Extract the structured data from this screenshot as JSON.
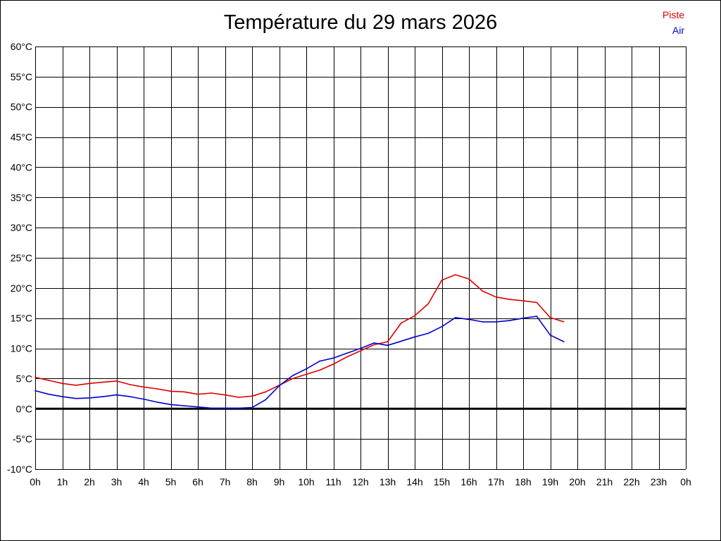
{
  "chart_data": {
    "type": "line",
    "title": "Température du 29 mars 2026",
    "xlabel": "",
    "ylabel": "",
    "x_ticks": [
      "0h",
      "1h",
      "2h",
      "3h",
      "4h",
      "5h",
      "6h",
      "7h",
      "8h",
      "9h",
      "10h",
      "11h",
      "12h",
      "13h",
      "14h",
      "15h",
      "16h",
      "17h",
      "18h",
      "19h",
      "20h",
      "21h",
      "22h",
      "23h",
      "0h"
    ],
    "y_ticks": [
      "-10°C",
      "-5°C",
      "0°C",
      "5°C",
      "10°C",
      "15°C",
      "20°C",
      "25°C",
      "30°C",
      "35°C",
      "40°C",
      "45°C",
      "50°C",
      "55°C",
      "60°C"
    ],
    "xlim": [
      0,
      24
    ],
    "ylim": [
      -10,
      60
    ],
    "grid": true,
    "zero_line": true,
    "legend_position": "top-right",
    "series": [
      {
        "name": "Piste",
        "color": "#dd0000",
        "x": [
          0,
          0.5,
          1,
          1.5,
          2,
          2.5,
          3,
          3.5,
          4,
          4.5,
          5,
          5.5,
          6,
          6.5,
          7,
          7.5,
          8,
          8.5,
          9,
          9.5,
          10,
          10.5,
          11,
          11.5,
          12,
          12.5,
          13,
          13.5,
          14,
          14.5,
          15,
          15.5,
          16,
          16.5,
          17,
          17.5,
          18,
          18.5,
          19,
          19.5
        ],
        "values": [
          5.2,
          4.7,
          4.2,
          3.9,
          4.2,
          4.4,
          4.6,
          4.0,
          3.6,
          3.3,
          2.9,
          2.8,
          2.4,
          2.6,
          2.3,
          1.9,
          2.1,
          2.8,
          3.9,
          5.0,
          5.7,
          6.4,
          7.4,
          8.6,
          9.6,
          10.6,
          11.1,
          14.2,
          15.4,
          17.4,
          21.3,
          22.2,
          21.5,
          19.5,
          18.5,
          18.1,
          17.9,
          17.6,
          15.1,
          14.4
        ]
      },
      {
        "name": "Air",
        "color": "#0000cc",
        "x": [
          0,
          0.5,
          1,
          1.5,
          2,
          2.5,
          3,
          3.5,
          4,
          4.5,
          5,
          5.5,
          6,
          6.5,
          7,
          7.5,
          8,
          8.5,
          9,
          9.5,
          10,
          10.5,
          11,
          11.5,
          12,
          12.5,
          13,
          13.5,
          14,
          14.5,
          15,
          15.5,
          16,
          16.5,
          17,
          17.5,
          18,
          18.5,
          19,
          19.5
        ],
        "values": [
          3.0,
          2.4,
          2.0,
          1.7,
          1.8,
          2.0,
          2.3,
          2.0,
          1.6,
          1.1,
          0.7,
          0.5,
          0.3,
          0.1,
          0.1,
          0.1,
          0.2,
          1.5,
          3.8,
          5.5,
          6.6,
          7.9,
          8.4,
          9.2,
          10.0,
          10.9,
          10.5,
          11.2,
          11.9,
          12.5,
          13.6,
          15.1,
          14.8,
          14.4,
          14.4,
          14.6,
          15.0,
          15.3,
          12.2,
          11.1
        ]
      }
    ]
  }
}
